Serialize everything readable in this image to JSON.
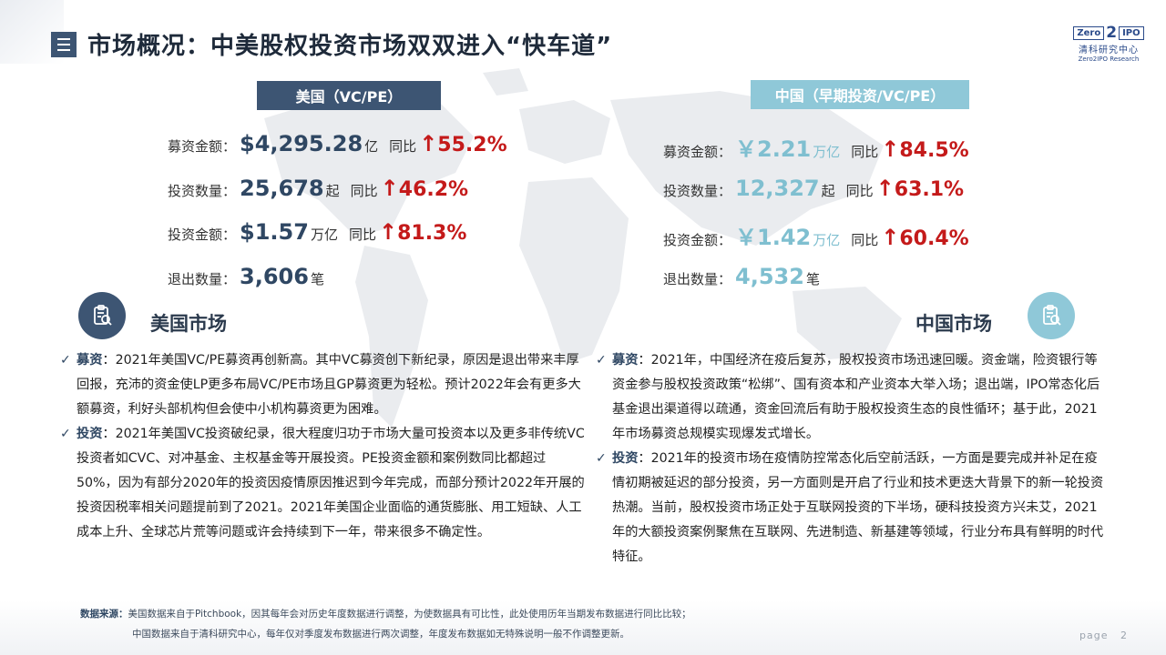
{
  "header": {
    "title": "市场概况：中美股权投资市场双双进入“快车道”"
  },
  "logo": {
    "zero": "Zero",
    "two": "2",
    "ipo": "IPO",
    "cn_name": "清科研究中心",
    "en_name": "Zero2IPO Research"
  },
  "us": {
    "tag": "美国（VC/PE）",
    "stats": [
      {
        "label": "募资金额：",
        "value": "$4,295.28",
        "unit": "亿",
        "yoy_label": "同比",
        "yoy": "55.2%"
      },
      {
        "label": "投资数量：",
        "value": "25,678",
        "unit": "起",
        "yoy_label": "同比",
        "yoy": " 46.2%"
      },
      {
        "label": "投资金额：",
        "value": "$1.57",
        "unit": "万亿",
        "yoy_label": "同比",
        "yoy": "81.3%"
      },
      {
        "label": "退出数量：",
        "value": "3,606",
        "unit": " 笔"
      }
    ],
    "market_title": "美国市场",
    "paragraphs": [
      {
        "keyword": "募资",
        "text": "：2021年美国VC/PE募资再创新高。其中VC募资创下新纪录，原因是退出带来丰厚回报，充沛的资金使LP更多布局VC/PE市场且GP募资更为轻松。预计2022年会有更多大额募资，利好头部机构但会使中小机构募资更为困难。"
      },
      {
        "keyword": "投资",
        "text": "：2021年美国VC投资破纪录，很大程度归功于市场大量可投资本以及更多非传统VC投资者如CVC、对冲基金、主权基金等开展投资。PE投资金额和案例数同比都超过50%，因为有部分2020年的投资因疫情原因推迟到今年完成，而部分预计2022年开展的投资因税率相关问题提前到了2021。2021年美国企业面临的通货膨胀、用工短缺、人工成本上升、全球芯片荒等问题或许会持续到下一年，带来很多不确定性。"
      }
    ]
  },
  "cn": {
    "tag": "中国（早期投资/VC/PE）",
    "stats": [
      {
        "label": "募资金额：",
        "value": "￥2.21",
        "unit": "万亿",
        "yoy_label": "同比",
        "yoy": "84.5%"
      },
      {
        "label": "投资数量：",
        "value": "12,327",
        "unit": "起",
        "yoy_label": "同比",
        "yoy": "63.1%"
      },
      {
        "label": "投资金额：",
        "value": "￥1.42",
        "unit": "万亿",
        "yoy_label": "同比",
        "yoy": "60.4%"
      },
      {
        "label": "退出数量：",
        "value": "4,532",
        "unit": " 笔"
      }
    ],
    "market_title": "中国市场",
    "paragraphs": [
      {
        "keyword": "募资",
        "text": "：2021年，中国经济在疫后复苏，股权投资市场迅速回暖。资金端，险资银行等资金参与股权投资政策“松绑”、国有资本和产业资本大举入场；退出端，IPO常态化后基金退出渠道得以疏通，资金回流后有助于股权投资生态的良性循环；基于此，2021年市场募资总规模实现爆发式增长。"
      },
      {
        "keyword": "投资",
        "text": "：2021年的投资市场在疫情防控常态化后空前活跃，一方面是要完成并补足在疫情初期被延迟的部分投资，另一方面则是开启了行业和技术更迭大背景下的新一轮投资热潮。当前，股权投资市场正处于互联网投资的下半场，硬科技投资方兴未艾，2021年的大额投资案例聚焦在互联网、先进制造、新基建等领域，行业分布具有鲜明的时代特征。"
      }
    ]
  },
  "source": {
    "label": "数据来源：",
    "line1": "美国数据来自于Pitchbook，因其每年会对历史年度数据进行调整，为使数据具有可比性，此处使用历年当期发布数据进行同比比较；",
    "line2": "中国数据来自于清科研究中心，每年仅对季度发布数据进行两次调整，年度发布数据如无特殊说明一般不作调整更新。"
  },
  "footer": {
    "page_label": "page",
    "page_number": "2"
  },
  "colors": {
    "us_accent": "#3d5573",
    "cn_accent": "#8fc8d8",
    "yoy_red": "#c41a1a"
  },
  "icons": {
    "menu": "menu-icon",
    "us_market": "clipboard-search-icon",
    "cn_market": "clipboard-search-icon",
    "check": "check-icon",
    "arrow": "arrow-up-icon"
  }
}
